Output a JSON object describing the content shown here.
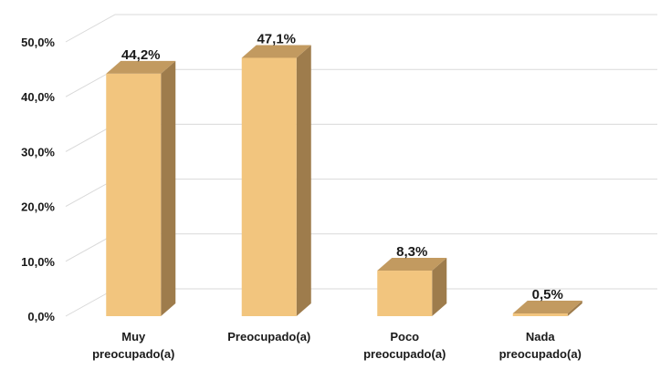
{
  "chart_data": {
    "type": "bar",
    "style": "3d-column",
    "categories": [
      [
        "Muy",
        "preocupado(a)"
      ],
      [
        "Preocupado(a)"
      ],
      [
        "Poco",
        "preocupado(a)"
      ],
      [
        "Nada",
        "preocupado(a)"
      ]
    ],
    "values": [
      44.2,
      47.1,
      8.3,
      0.5
    ],
    "data_labels": [
      "44,2%",
      "47,1%",
      "8,3%",
      "0,5%"
    ],
    "yticks": [
      "0,0%",
      "10,0%",
      "20,0%",
      "30,0%",
      "40,0%",
      "50,0%"
    ],
    "ylim": [
      0,
      50
    ],
    "grid": true,
    "legend": "none",
    "title": "",
    "xlabel": "",
    "ylabel": "",
    "colors": {
      "front": "#f2c57e",
      "side": "#9e7c4c",
      "top": "#c29a60",
      "grid": "#d9d9d9",
      "text": "#1a1a1a"
    }
  }
}
